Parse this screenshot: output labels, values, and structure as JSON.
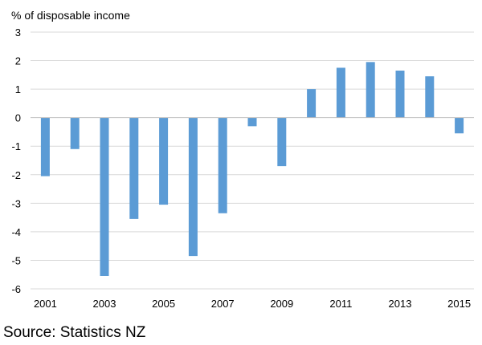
{
  "colors": {
    "bar": "#5b9bd5",
    "grid": "#d9d9d9",
    "axis": "#bfbfbf",
    "text": "#000000"
  },
  "chart_data": {
    "type": "bar",
    "title": "",
    "ylabel": "% of disposable income",
    "xlabel": "",
    "ylim": [
      -6,
      3
    ],
    "yticks": [
      3,
      2,
      1,
      0,
      -1,
      -2,
      -3,
      -4,
      -5,
      -6
    ],
    "grid": true,
    "legend": "none",
    "categories": [
      "2001",
      "2002",
      "2003",
      "2004",
      "2005",
      "2006",
      "2007",
      "2008",
      "2009",
      "2010",
      "2011",
      "2012",
      "2013",
      "2014",
      "2015"
    ],
    "xtick_labels": [
      "2001",
      "",
      "2003",
      "",
      "2005",
      "",
      "2007",
      "",
      "2009",
      "",
      "2011",
      "",
      "2013",
      "",
      "2015"
    ],
    "values": [
      -2.05,
      -1.1,
      -5.55,
      -3.55,
      -3.05,
      -4.85,
      -3.35,
      -0.3,
      -1.7,
      1.0,
      1.75,
      1.95,
      1.65,
      1.45,
      -0.55
    ]
  },
  "source": "Source:  Statistics NZ"
}
